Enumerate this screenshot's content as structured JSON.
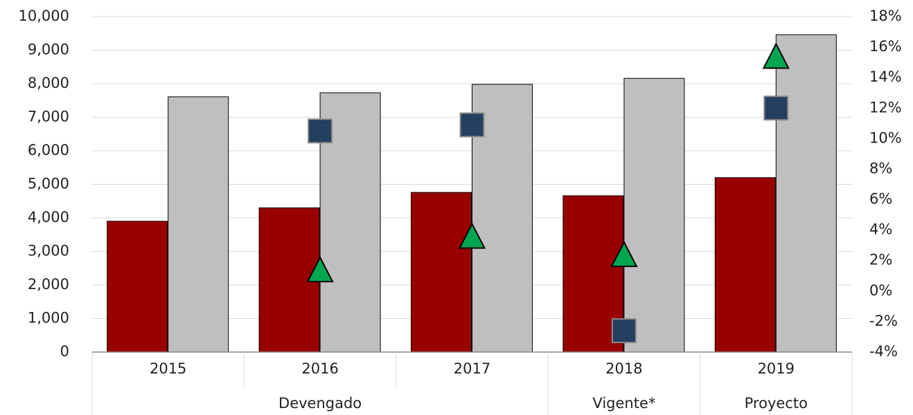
{
  "chart_data": {
    "type": "bar",
    "categories": [
      "2015",
      "2016",
      "2017",
      "2018",
      "2019"
    ],
    "groups": [
      {
        "label": "Devengado",
        "span": 3
      },
      {
        "label": "Vigente*",
        "span": 1
      },
      {
        "label": "Proyecto",
        "span": 1
      }
    ],
    "series": [
      {
        "type": "bar",
        "color": "#990000",
        "values": [
          3900,
          4300,
          4760,
          4660,
          5200
        ]
      },
      {
        "type": "bar",
        "color": "#bfbfbf",
        "values": [
          7610,
          7730,
          7980,
          8160,
          9460
        ]
      },
      {
        "type": "scatter",
        "marker": "square",
        "color": "#243f60",
        "axis": "y2",
        "values": [
          null,
          10.5,
          10.9,
          -2.6,
          12.0
        ]
      },
      {
        "type": "scatter",
        "marker": "triangle",
        "color": "#00a650",
        "axis": "y2",
        "values": [
          null,
          1.3,
          3.5,
          2.3,
          15.3
        ]
      }
    ],
    "ylim": [
      0,
      10000
    ],
    "yticks": [
      0,
      {
        "value": 1000,
        "label": "1,000"
      },
      {
        "value": 2000,
        "label": "2,000"
      },
      {
        "value": 3000,
        "label": "3,000"
      },
      {
        "value": 4000,
        "label": "4,000"
      },
      {
        "value": 5000,
        "label": "5,000"
      },
      {
        "value": 6000,
        "label": "6,000"
      },
      {
        "value": 7000,
        "label": "7,000"
      },
      {
        "value": 8000,
        "label": "8,000"
      },
      {
        "value": 9000,
        "label": "9,000"
      },
      {
        "value": 10000,
        "label": "10,000"
      }
    ],
    "y2lim": [
      -4,
      18
    ],
    "y2ticks": [
      {
        "value": -4,
        "label": "-4%"
      },
      {
        "value": -2,
        "label": "-2%"
      },
      {
        "value": 0,
        "label": "0%"
      },
      {
        "value": 2,
        "label": "2%"
      },
      {
        "value": 4,
        "label": "4%"
      },
      {
        "value": 6,
        "label": "6%"
      },
      {
        "value": 8,
        "label": "8%"
      },
      {
        "value": 10,
        "label": "10%"
      },
      {
        "value": 12,
        "label": "12%"
      },
      {
        "value": 14,
        "label": "14%"
      },
      {
        "value": 16,
        "label": "16%"
      },
      {
        "value": 18,
        "label": "18%"
      }
    ],
    "grid": true
  }
}
